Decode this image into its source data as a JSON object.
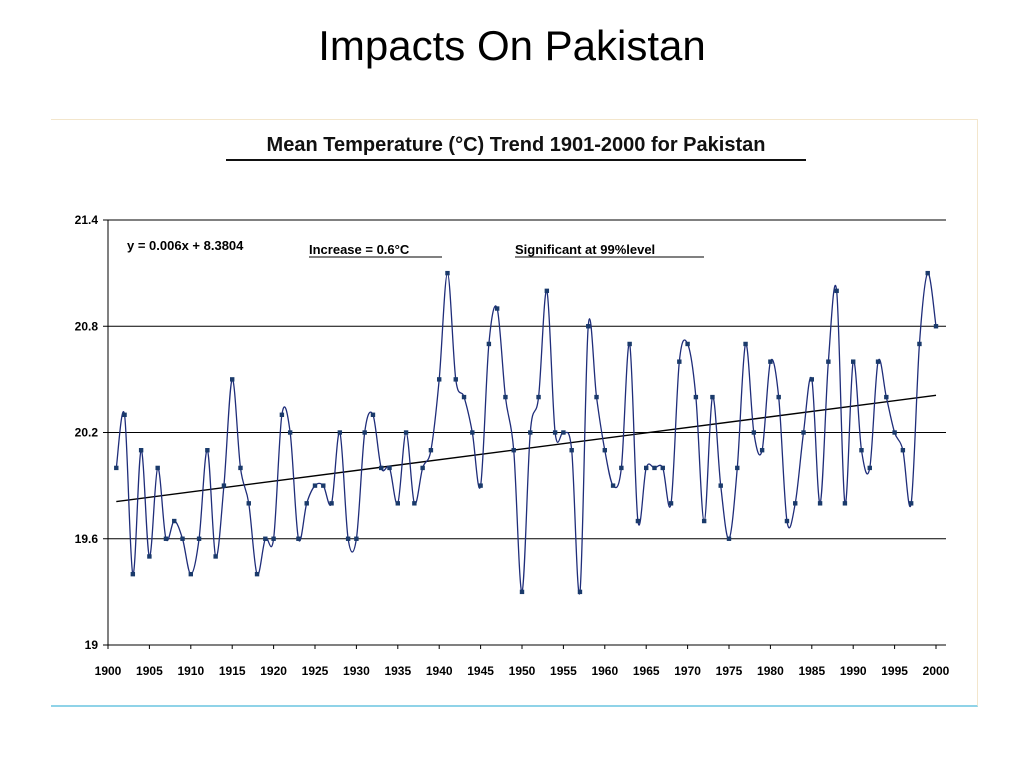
{
  "slide": {
    "title": "Impacts On Pakistan"
  },
  "colors": {
    "series": "#1f2d7a",
    "marker": "#1a3a6b",
    "trend": "#000000",
    "grid": "#000000",
    "frame_bottom": "#8fd3e8"
  },
  "chart_data": {
    "type": "line",
    "title": "Mean Temperature (°C) Trend 1901-2000 for Pakistan",
    "xlabel": "",
    "ylabel": "",
    "xlim": [
      1900,
      2000
    ],
    "ylim": [
      19,
      21.4
    ],
    "x_ticks": [
      "1900",
      "1905",
      "1910",
      "1915",
      "1920",
      "1925",
      "1930",
      "1935",
      "1940",
      "1945",
      "1950",
      "1955",
      "1960",
      "1965",
      "1970",
      "1975",
      "1980",
      "1985",
      "1990",
      "1995",
      "2000"
    ],
    "y_ticks": [
      "21.4",
      "20.8",
      "20.2",
      "19.6",
      "19"
    ],
    "grid": "horizontal",
    "annotations": {
      "equation": "y = 0.006x + 8.3804",
      "increase": "Increase = 0.6°C",
      "significance": "Significant at 99%level"
    },
    "trend": {
      "start": [
        1901,
        19.81
      ],
      "end": [
        2000,
        20.41
      ]
    },
    "series": [
      {
        "x": [
          1901,
          1902,
          1903,
          1904,
          1905,
          1906,
          1907,
          1908,
          1909,
          1910,
          1911,
          1912,
          1913,
          1914,
          1915,
          1916,
          1917,
          1918,
          1919,
          1920,
          1921,
          1922,
          1923,
          1924,
          1925,
          1926,
          1927,
          1928,
          1929,
          1930,
          1931,
          1932,
          1933,
          1934,
          1935,
          1936,
          1937,
          1938,
          1939,
          1940,
          1941,
          1942,
          1943,
          1944,
          1945,
          1946,
          1947,
          1948,
          1949,
          1950,
          1951,
          1952,
          1953,
          1954,
          1955,
          1956,
          1957,
          1958,
          1959,
          1960,
          1961,
          1962,
          1963,
          1964,
          1965,
          1966,
          1967,
          1968,
          1969,
          1970,
          1971,
          1972,
          1973,
          1974,
          1975,
          1976,
          1977,
          1978,
          1979,
          1980,
          1981,
          1982,
          1983,
          1984,
          1985,
          1986,
          1987,
          1988,
          1989,
          1990,
          1991,
          1992,
          1993,
          1994,
          1995,
          1996,
          1997,
          1998,
          1999,
          2000
        ],
        "values": [
          20.0,
          20.3,
          19.4,
          20.1,
          19.5,
          20.0,
          19.6,
          19.7,
          19.6,
          19.4,
          19.6,
          20.1,
          19.5,
          19.9,
          20.5,
          20.0,
          19.8,
          19.4,
          19.6,
          19.6,
          20.3,
          20.2,
          19.6,
          19.8,
          19.9,
          19.9,
          19.8,
          20.2,
          19.6,
          19.6,
          20.2,
          20.3,
          20.0,
          20.0,
          19.8,
          20.2,
          19.8,
          20.0,
          20.1,
          20.5,
          21.1,
          20.5,
          20.4,
          20.2,
          19.9,
          20.7,
          20.9,
          20.4,
          20.1,
          19.3,
          20.2,
          20.4,
          21.0,
          20.2,
          20.2,
          20.1,
          19.3,
          20.8,
          20.4,
          20.1,
          19.9,
          20.0,
          20.7,
          19.7,
          20.0,
          20.0,
          20.0,
          19.8,
          20.6,
          20.7,
          20.4,
          19.7,
          20.4,
          19.9,
          19.6,
          20.0,
          20.7,
          20.2,
          20.1,
          20.6,
          20.4,
          19.7,
          19.8,
          20.2,
          20.5,
          19.8,
          20.6,
          21.0,
          19.8,
          20.6,
          20.1,
          20.0,
          20.6,
          20.4,
          20.2,
          20.1,
          19.8,
          20.7,
          21.1,
          20.8
        ]
      }
    ]
  }
}
